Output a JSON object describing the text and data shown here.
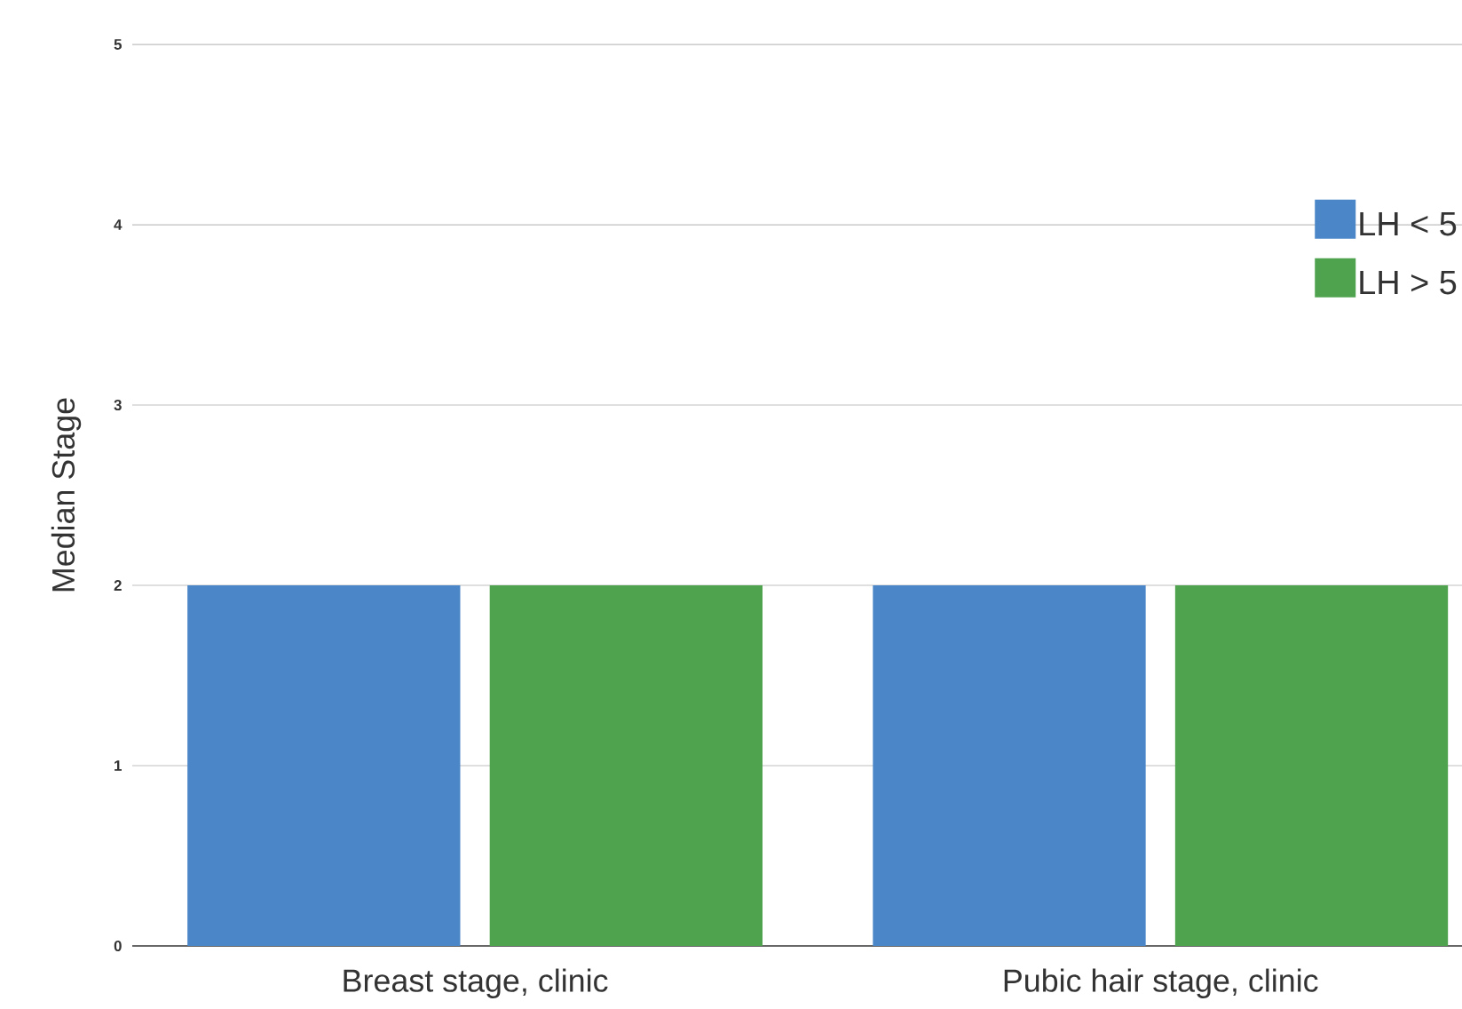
{
  "chart_data": {
    "type": "bar",
    "ylabel": "Median Stage",
    "categories": [
      "Breast stage, clinic",
      "Pubic hair stage, clinic"
    ],
    "series": [
      {
        "name": "LH < 5",
        "color": "#4a86c8",
        "values": [
          2,
          2
        ]
      },
      {
        "name": "LH > 5",
        "color": "#4fa34f",
        "values": [
          2,
          2
        ]
      }
    ],
    "ylim": [
      0,
      5
    ],
    "yticks": [
      0,
      1,
      2,
      3,
      4,
      5
    ],
    "grid": "y",
    "legend": "top right"
  }
}
